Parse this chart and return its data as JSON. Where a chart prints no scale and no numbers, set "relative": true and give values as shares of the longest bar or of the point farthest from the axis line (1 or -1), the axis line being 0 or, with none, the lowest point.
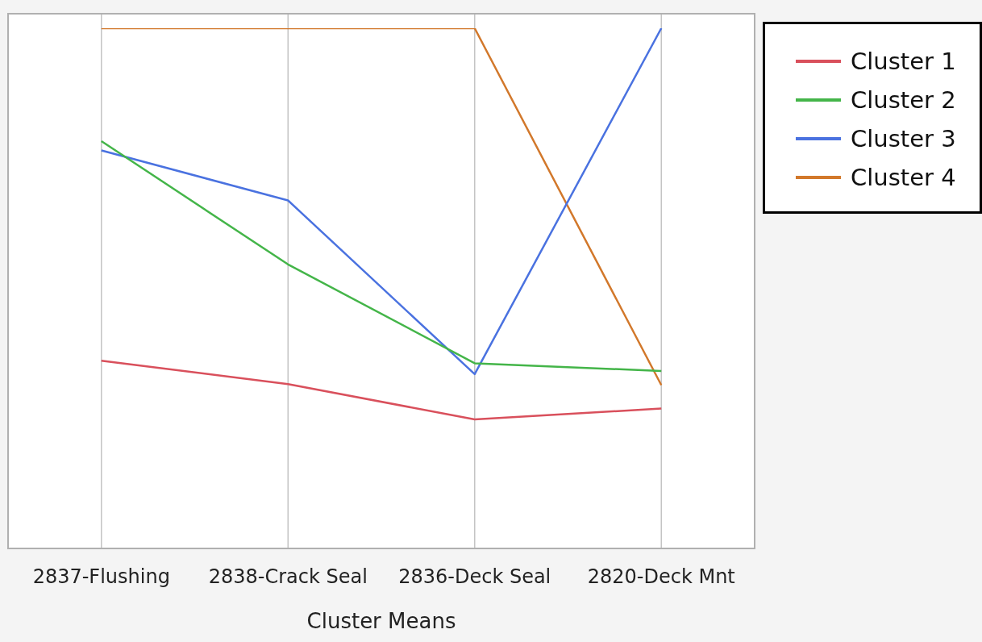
{
  "chart_data": {
    "type": "line",
    "xlabel": "Cluster Means",
    "categories": [
      "2837-Flushing",
      "2838-Crack Seal",
      "2836-Deck Seal",
      "2820-Deck Mnt"
    ],
    "relative": true,
    "grid": "x",
    "legend": "top right",
    "marker": "none",
    "series": [
      {
        "name": "Cluster 1",
        "color": "#d9505c",
        "values": [
          0.361,
          0.316,
          0.248,
          0.269
        ]
      },
      {
        "name": "Cluster 2",
        "color": "#44b549",
        "values": [
          0.783,
          0.546,
          0.356,
          0.341
        ]
      },
      {
        "name": "Cluster 3",
        "color": "#4a72e0",
        "values": [
          0.765,
          0.669,
          0.335,
          1
        ]
      },
      {
        "name": "Cluster 4",
        "color": "#d2782b",
        "values": [
          1,
          1,
          1,
          0.314
        ]
      }
    ]
  }
}
